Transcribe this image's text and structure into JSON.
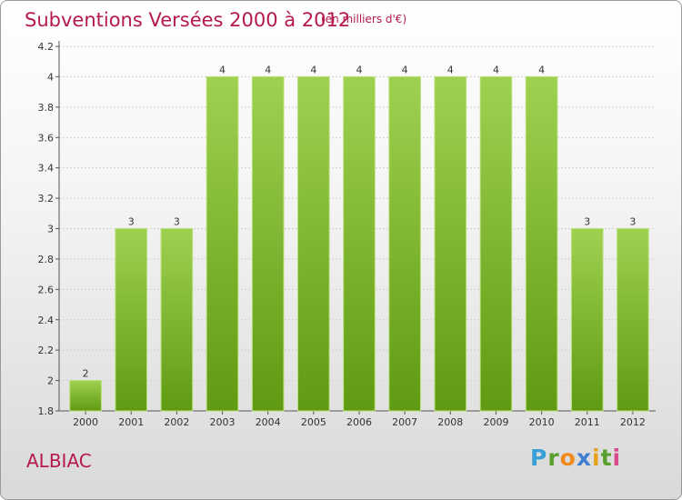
{
  "header": {
    "title": "Subventions Versées 2000 à 2012",
    "unit": "(en milliers d'€)"
  },
  "footer": {
    "commune": "ALBIAC",
    "logo_text": "Proxiti"
  },
  "colors": {
    "bar_top": "#9fd150",
    "bar_bottom": "#5f9a12",
    "title": "#b5194f"
  },
  "chart_data": {
    "type": "bar",
    "title": "Subventions Versées 2000 à 2012",
    "xlabel": "",
    "ylabel": "",
    "categories": [
      "2000",
      "2001",
      "2002",
      "2003",
      "2004",
      "2005",
      "2006",
      "2007",
      "2008",
      "2009",
      "2010",
      "2011",
      "2012"
    ],
    "values": [
      2,
      3,
      3,
      4,
      4,
      4,
      4,
      4,
      4,
      4,
      4,
      3,
      3
    ],
    "data_labels": [
      "2",
      "3",
      "3",
      "4",
      "4",
      "4",
      "4",
      "4",
      "4",
      "4",
      "4",
      "3",
      "3"
    ],
    "yticks": [
      "1.8",
      "2",
      "2.2",
      "2.4",
      "2.6",
      "2.8",
      "3",
      "3.2",
      "3.4",
      "3.6",
      "3.8",
      "4",
      "4.2"
    ],
    "ylim": [
      1.8,
      4.2
    ],
    "grid": true,
    "legend": "none"
  }
}
